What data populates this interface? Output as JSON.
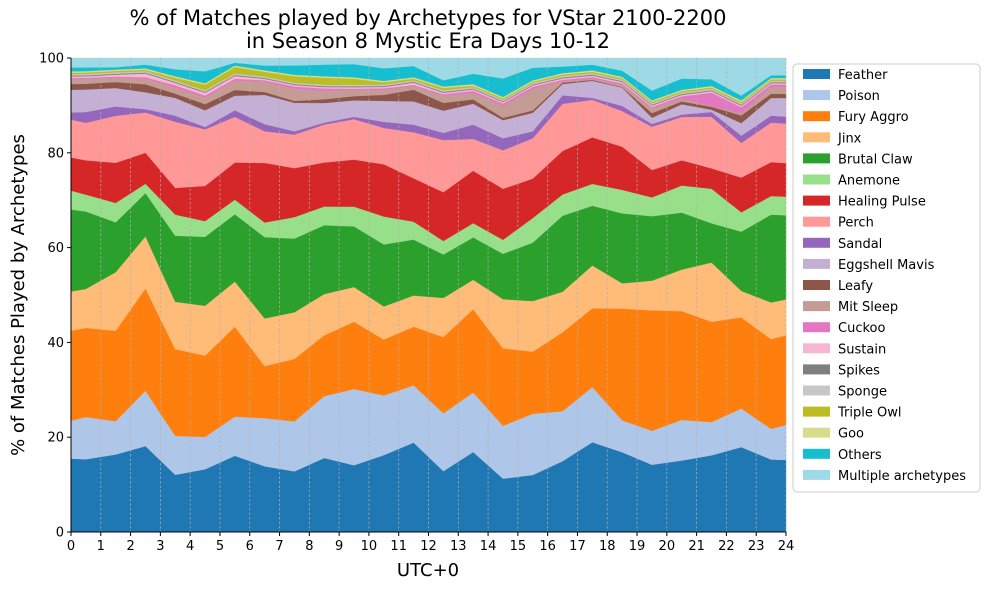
{
  "chart_data": {
    "type": "area",
    "title": [
      "% of Matches played by Archetypes for VStar 2100-2200",
      "in Season 8 Mystic Era Days 10-12"
    ],
    "xlabel": "UTC+0",
    "ylabel": "% of Matches Played by Archetypes",
    "xlim": [
      0,
      24
    ],
    "ylim": [
      0,
      100
    ],
    "xticks": [
      "0",
      "1",
      "2",
      "3",
      "4",
      "5",
      "6",
      "7",
      "8",
      "9",
      "10",
      "11",
      "12",
      "13",
      "14",
      "15",
      "16",
      "17",
      "18",
      "19",
      "20",
      "21",
      "22",
      "23",
      "24"
    ],
    "yticks": [
      "0",
      "20",
      "40",
      "60",
      "80",
      "100"
    ],
    "vertical_grid": true,
    "legend_position": "outside-right",
    "x": [
      0,
      0.5,
      1.5,
      2.5,
      3.5,
      4.5,
      5.5,
      6.5,
      7.5,
      8.5,
      9.5,
      10.5,
      11.5,
      12.5,
      13.5,
      14.5,
      15.5,
      16.5,
      17.5,
      18.5,
      19.5,
      20.5,
      21.5,
      22.5,
      23.5,
      24
    ],
    "series": [
      {
        "name": "Feather",
        "color": "#1f77b4",
        "values": [
          15.5,
          15.5,
          16.8,
          18.3,
          12.2,
          13.2,
          16.2,
          13.9,
          13.0,
          15.8,
          14.2,
          16.5,
          20.0,
          12.6,
          16.8,
          11.5,
          12.3,
          15.0,
          18.9,
          17.0,
          14.3,
          15.3,
          16.2,
          17.6,
          15.6,
          15.5
        ]
      },
      {
        "name": "Poison",
        "color": "#aec7e8",
        "values": [
          8.0,
          9.0,
          7.2,
          11.8,
          8.3,
          6.8,
          8.3,
          10.2,
          10.7,
          13.2,
          16.2,
          12.8,
          12.8,
          12.0,
          12.5,
          11.4,
          13.2,
          10.6,
          11.6,
          6.8,
          7.2,
          8.7,
          7.0,
          8.0,
          6.6,
          7.5
        ]
      },
      {
        "name": "Fury Aggro",
        "color": "#ff7f0e",
        "values": [
          19.0,
          19.0,
          19.6,
          21.8,
          18.5,
          17.1,
          19.1,
          11.0,
          13.4,
          13.0,
          14.3,
          12.0,
          13.1,
          15.8,
          17.5,
          16.7,
          13.4,
          16.7,
          16.6,
          23.8,
          25.6,
          23.3,
          21.2,
          18.9,
          19.3,
          19.3
        ]
      },
      {
        "name": "Jinx",
        "color": "#ffbb78",
        "values": [
          8.3,
          8.3,
          12.7,
          11.1,
          10.1,
          10.5,
          9.6,
          10.1,
          10.0,
          8.8,
          7.4,
          7.1,
          7.0,
          8.1,
          6.2,
          10.6,
          10.9,
          8.6,
          9.0,
          5.4,
          6.3,
          8.9,
          12.5,
          5.5,
          7.9,
          7.7
        ]
      },
      {
        "name": "Brutal Claw",
        "color": "#2ca02c",
        "values": [
          17.3,
          16.5,
          10.8,
          9.2,
          14.1,
          14.5,
          14.3,
          17.2,
          15.8,
          14.7,
          12.9,
          13.3,
          12.5,
          9.0,
          8.9,
          9.8,
          12.6,
          16.1,
          12.6,
          14.9,
          13.7,
          12.2,
          8.3,
          12.3,
          18.9,
          18.1
        ]
      },
      {
        "name": "Anemone",
        "color": "#98df8a",
        "values": [
          4.0,
          3.6,
          4.2,
          2.0,
          4.5,
          3.3,
          3.1,
          3.1,
          4.6,
          4.0,
          4.2,
          6.0,
          4.0,
          2.8,
          3.0,
          3.0,
          5.3,
          4.5,
          4.6,
          5.0,
          4.0,
          5.8,
          7.3,
          4.0,
          4.0,
          4.0
        ]
      },
      {
        "name": "Healing Pulse",
        "color": "#d62728",
        "values": [
          7.0,
          7.3,
          8.7,
          6.6,
          5.7,
          7.4,
          7.9,
          12.6,
          10.5,
          9.4,
          10.0,
          11.2,
          9.7,
          10.1,
          11.0,
          11.0,
          8.5,
          9.2,
          9.8,
          9.2,
          5.8,
          5.4,
          4.3,
          7.2,
          7.3,
          7.2
        ]
      },
      {
        "name": "Perch",
        "color": "#ff9896",
        "values": [
          8.0,
          8.0,
          10.2,
          8.6,
          14.1,
          11.9,
          9.7,
          6.7,
          7.2,
          8.1,
          8.6,
          7.8,
          10.3,
          10.8,
          6.7,
          8.3,
          8.7,
          10.0,
          7.9,
          7.6,
          9.2,
          9.3,
          10.9,
          7.2,
          8.5,
          8.5
        ]
      },
      {
        "name": "Sandal",
        "color": "#9467bd",
        "values": [
          1.5,
          2.3,
          2.0,
          0.7,
          1.3,
          0.5,
          1.4,
          1.5,
          0.7,
          0.4,
          0.5,
          1.3,
          1.7,
          1.5,
          3.0,
          2.6,
          1.5,
          1.8,
          0.4,
          1.1,
          0.6,
          0.5,
          1.0,
          1.5,
          1.5,
          1.5
        ]
      },
      {
        "name": "Eggshell Mavis",
        "color": "#c5b0d5",
        "values": [
          4.8,
          4.8,
          4.0,
          3.6,
          3.8,
          3.5,
          3.1,
          6.2,
          6.1,
          4.2,
          3.5,
          4.5,
          5.2,
          4.6,
          4.4,
          3.9,
          4.0,
          2.4,
          3.6,
          3.9,
          1.3,
          2.2,
          0.5,
          2.6,
          3.8,
          4.0
        ]
      },
      {
        "name": "Leafy",
        "color": "#8c564b",
        "values": [
          1.2,
          1.2,
          1.3,
          1.7,
          0.9,
          1.3,
          1.2,
          0.6,
          0.4,
          0.8,
          0.9,
          1.3,
          2.6,
          1.6,
          0.9,
          0.5,
          0.5,
          0.3,
          0.2,
          0.1,
          1.0,
          0.6,
          0.6,
          1.6,
          0.9,
          0.9
        ]
      },
      {
        "name": "Mit Sleep",
        "color": "#c49c94",
        "values": [
          1.0,
          1.0,
          1.0,
          1.2,
          1.3,
          1.4,
          2.0,
          2.2,
          2.6,
          1.8,
          1.4,
          1.1,
          0.8,
          1.5,
          1.4,
          2.6,
          4.6,
          0.3,
          0.3,
          0.5,
          1.0,
          0.6,
          0.2,
          0.5,
          1.5,
          1.5
        ]
      },
      {
        "name": "Cuckoo",
        "color": "#e377c2",
        "values": [
          0.3,
          0.3,
          0.2,
          0.3,
          0.5,
          0.4,
          0.4,
          0.3,
          0.5,
          0.5,
          0.2,
          0.3,
          0.3,
          0.3,
          0.4,
          0.5,
          0.5,
          0.3,
          0.3,
          0.3,
          0.3,
          0.5,
          2.8,
          1.2,
          0.5,
          0.5
        ]
      },
      {
        "name": "Sustain",
        "color": "#f7b6d2",
        "values": [
          0.3,
          0.3,
          0.4,
          0.8,
          0.5,
          0.6,
          0.6,
          0.3,
          0.3,
          0.3,
          0.3,
          0.3,
          0.5,
          0.3,
          0.3,
          0.3,
          0.3,
          0.3,
          0.3,
          0.3,
          0.3,
          0.3,
          0.3,
          0.3,
          0.3,
          0.3
        ]
      },
      {
        "name": "Spikes",
        "color": "#7f7f7f",
        "values": [
          0.2,
          0.2,
          0.2,
          0.2,
          0.2,
          0.2,
          0.2,
          0.2,
          0.2,
          0.2,
          0.2,
          0.2,
          0.2,
          0.2,
          0.2,
          0.2,
          0.2,
          0.2,
          0.2,
          0.2,
          0.2,
          0.2,
          0.2,
          0.2,
          0.2,
          0.2
        ]
      },
      {
        "name": "Sponge",
        "color": "#c7c7c7",
        "values": [
          0.3,
          0.3,
          0.3,
          0.3,
          0.3,
          0.3,
          0.3,
          0.3,
          0.3,
          0.3,
          0.3,
          0.3,
          0.3,
          0.3,
          0.3,
          0.3,
          0.3,
          0.3,
          0.3,
          0.3,
          0.3,
          0.3,
          0.3,
          0.3,
          0.3,
          0.3
        ]
      },
      {
        "name": "Triple Owl",
        "color": "#bcbd22",
        "values": [
          0.3,
          0.3,
          0.3,
          0.3,
          0.6,
          1.2,
          1.4,
          1.0,
          1.4,
          1.5,
          1.3,
          0.5,
          0.4,
          0.5,
          0.3,
          0.3,
          0.3,
          0.3,
          0.3,
          0.3,
          0.3,
          0.3,
          0.3,
          0.3,
          0.3,
          0.3
        ]
      },
      {
        "name": "Goo",
        "color": "#dbdb8d",
        "values": [
          0.3,
          0.3,
          0.3,
          0.3,
          0.3,
          0.3,
          0.3,
          0.3,
          0.3,
          0.3,
          0.3,
          0.3,
          0.3,
          0.3,
          0.3,
          0.3,
          0.3,
          0.3,
          0.3,
          0.3,
          0.3,
          0.3,
          0.3,
          0.3,
          0.3,
          0.3
        ]
      },
      {
        "name": "Others",
        "color": "#17becf",
        "values": [
          0.8,
          0.8,
          0.5,
          0.8,
          1.5,
          2.5,
          0.6,
          1.0,
          2.0,
          2.5,
          2.8,
          2.7,
          2.5,
          1.3,
          2.2,
          4.0,
          2.7,
          1.4,
          1.2,
          1.3,
          2.1,
          2.4,
          1.4,
          1.0,
          0.6,
          0.6
        ]
      },
      {
        "name": "Multiple archetypes",
        "color": "#9edae5",
        "values": [
          2.0,
          2.0,
          2.0,
          1.4,
          2.4,
          2.8,
          1.0,
          1.6,
          1.6,
          1.4,
          1.3,
          2.2,
          1.8,
          4.6,
          3.3,
          4.4,
          2.1,
          1.8,
          1.4,
          2.7,
          6.9,
          4.4,
          4.5,
          7.8,
          3.7,
          3.7
        ]
      }
    ]
  }
}
